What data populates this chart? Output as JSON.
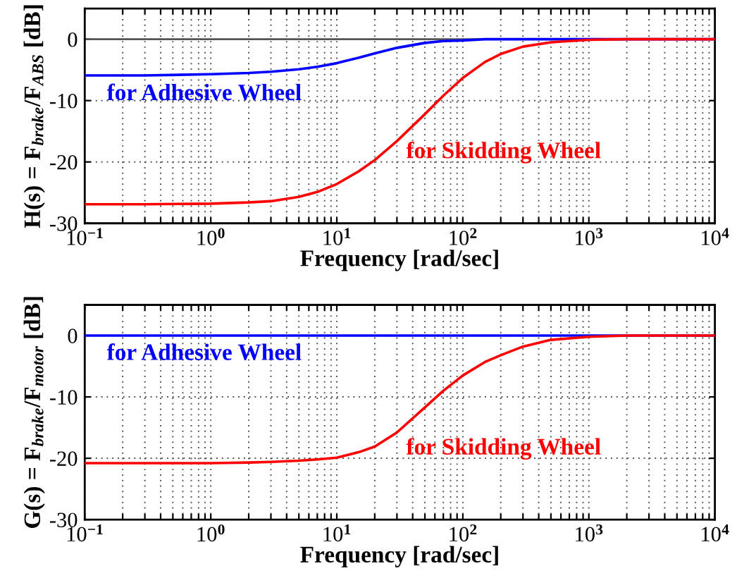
{
  "chart_data": [
    {
      "type": "line",
      "xlabel": "Frequency [rad/sec]",
      "ylabel": "H(s) = F$_{brake}$/F$_{ABS}$ [dB]",
      "log": "x",
      "grid": true,
      "legend": false,
      "marker": "none",
      "line_style": "solid",
      "xlim": [
        0.1,
        10000
      ],
      "xticks": [
        {
          "value": 0.1,
          "label": "10$^{−1}$"
        },
        {
          "value": 0.2,
          "label": null
        },
        {
          "value": 0.3,
          "label": null
        },
        {
          "value": 0.4,
          "label": null
        },
        {
          "value": 0.5,
          "label": null
        },
        {
          "value": 0.6,
          "label": null
        },
        {
          "value": 0.7,
          "label": null
        },
        {
          "value": 0.8,
          "label": null
        },
        {
          "value": 0.9,
          "label": null
        },
        {
          "value": 1,
          "label": "10$^{0}$"
        },
        {
          "value": 2,
          "label": null
        },
        {
          "value": 3,
          "label": null
        },
        {
          "value": 4,
          "label": null
        },
        {
          "value": 5,
          "label": null
        },
        {
          "value": 6,
          "label": null
        },
        {
          "value": 7,
          "label": null
        },
        {
          "value": 8,
          "label": null
        },
        {
          "value": 9,
          "label": null
        },
        {
          "value": 10,
          "label": "10$^{1}$"
        },
        {
          "value": 20,
          "label": null
        },
        {
          "value": 30,
          "label": null
        },
        {
          "value": 40,
          "label": null
        },
        {
          "value": 50,
          "label": null
        },
        {
          "value": 60,
          "label": null
        },
        {
          "value": 70,
          "label": null
        },
        {
          "value": 80,
          "label": null
        },
        {
          "value": 90,
          "label": null
        },
        {
          "value": 100,
          "label": "10$^{2}$"
        },
        {
          "value": 200,
          "label": null
        },
        {
          "value": 300,
          "label": null
        },
        {
          "value": 400,
          "label": null
        },
        {
          "value": 500,
          "label": null
        },
        {
          "value": 600,
          "label": null
        },
        {
          "value": 700,
          "label": null
        },
        {
          "value": 800,
          "label": null
        },
        {
          "value": 900,
          "label": null
        },
        {
          "value": 1000,
          "label": "10$^{3}$"
        },
        {
          "value": 2000,
          "label": null
        },
        {
          "value": 3000,
          "label": null
        },
        {
          "value": 4000,
          "label": null
        },
        {
          "value": 5000,
          "label": null
        },
        {
          "value": 6000,
          "label": null
        },
        {
          "value": 7000,
          "label": null
        },
        {
          "value": 8000,
          "label": null
        },
        {
          "value": 9000,
          "label": null
        },
        {
          "value": 10000,
          "label": "10$^{4}$"
        }
      ],
      "ylim": [
        -30,
        5
      ],
      "yticks": [
        -30,
        -20,
        -10,
        0
      ],
      "ref_lines": [
        {
          "axis": "y",
          "value": 0,
          "color": "#555555"
        }
      ],
      "x": [
        0.1,
        0.3,
        1,
        2,
        3,
        5,
        7,
        10,
        15,
        20,
        30,
        50,
        70,
        100,
        150,
        200,
        300,
        500,
        1000,
        2000,
        10000
      ],
      "series": [
        {
          "name": "for Adhesive Wheel",
          "color": "#0000ff",
          "values": [
            -5.9,
            -5.9,
            -5.7,
            -5.5,
            -5.3,
            -4.9,
            -4.5,
            -3.9,
            -3.0,
            -2.3,
            -1.4,
            -0.6,
            -0.3,
            -0.2,
            0,
            0,
            0,
            0,
            0,
            0,
            0
          ]
        },
        {
          "name": "for Skidding Wheel",
          "color": "#ff0000",
          "values": [
            -26.9,
            -26.9,
            -26.8,
            -26.6,
            -26.4,
            -25.7,
            -24.9,
            -23.6,
            -21.5,
            -19.7,
            -16.6,
            -12.2,
            -9.2,
            -6.3,
            -3.7,
            -2.4,
            -1.2,
            -0.5,
            -0.1,
            0,
            0
          ]
        }
      ]
    },
    {
      "type": "line",
      "xlabel": "Frequency [rad/sec]",
      "ylabel": "G(s) = F$_{brake}$/F$_{motor}$ [dB]",
      "log": "x",
      "grid": true,
      "legend": false,
      "marker": "none",
      "line_style": "solid",
      "xlim": [
        0.1,
        10000
      ],
      "xticks": [
        {
          "value": 0.1,
          "label": "10$^{−1}$"
        },
        {
          "value": 0.2,
          "label": null
        },
        {
          "value": 0.3,
          "label": null
        },
        {
          "value": 0.4,
          "label": null
        },
        {
          "value": 0.5,
          "label": null
        },
        {
          "value": 0.6,
          "label": null
        },
        {
          "value": 0.7,
          "label": null
        },
        {
          "value": 0.8,
          "label": null
        },
        {
          "value": 0.9,
          "label": null
        },
        {
          "value": 1,
          "label": "10$^{0}$"
        },
        {
          "value": 2,
          "label": null
        },
        {
          "value": 3,
          "label": null
        },
        {
          "value": 4,
          "label": null
        },
        {
          "value": 5,
          "label": null
        },
        {
          "value": 6,
          "label": null
        },
        {
          "value": 7,
          "label": null
        },
        {
          "value": 8,
          "label": null
        },
        {
          "value": 9,
          "label": null
        },
        {
          "value": 10,
          "label": "10$^{1}$"
        },
        {
          "value": 20,
          "label": null
        },
        {
          "value": 30,
          "label": null
        },
        {
          "value": 40,
          "label": null
        },
        {
          "value": 50,
          "label": null
        },
        {
          "value": 60,
          "label": null
        },
        {
          "value": 70,
          "label": null
        },
        {
          "value": 80,
          "label": null
        },
        {
          "value": 90,
          "label": null
        },
        {
          "value": 100,
          "label": "10$^{2}$"
        },
        {
          "value": 200,
          "label": null
        },
        {
          "value": 300,
          "label": null
        },
        {
          "value": 400,
          "label": null
        },
        {
          "value": 500,
          "label": null
        },
        {
          "value": 600,
          "label": null
        },
        {
          "value": 700,
          "label": null
        },
        {
          "value": 800,
          "label": null
        },
        {
          "value": 900,
          "label": null
        },
        {
          "value": 1000,
          "label": "10$^{3}$"
        },
        {
          "value": 2000,
          "label": null
        },
        {
          "value": 3000,
          "label": null
        },
        {
          "value": 4000,
          "label": null
        },
        {
          "value": 5000,
          "label": null
        },
        {
          "value": 6000,
          "label": null
        },
        {
          "value": 7000,
          "label": null
        },
        {
          "value": 8000,
          "label": null
        },
        {
          "value": 9000,
          "label": null
        },
        {
          "value": 10000,
          "label": "10$^{4}$"
        }
      ],
      "ylim": [
        -30,
        5
      ],
      "yticks": [
        -30,
        -20,
        -10,
        0
      ],
      "x": [
        0.1,
        0.3,
        1,
        2,
        3,
        5,
        7,
        10,
        15,
        20,
        30,
        50,
        70,
        100,
        150,
        200,
        300,
        500,
        1000,
        2000,
        10000
      ],
      "series": [
        {
          "name": "for Adhesive Wheel",
          "color": "#0000ff",
          "values": [
            0,
            0,
            0,
            0,
            0,
            0,
            0,
            0,
            0,
            0,
            0,
            0,
            0,
            0,
            0,
            0,
            0,
            0,
            0,
            0,
            0
          ]
        },
        {
          "name": "for Skidding Wheel",
          "color": "#ff0000",
          "values": [
            -20.8,
            -20.8,
            -20.8,
            -20.7,
            -20.6,
            -20.4,
            -20.2,
            -19.9,
            -19.0,
            -18.1,
            -15.8,
            -11.7,
            -9.0,
            -6.5,
            -4.3,
            -3.2,
            -1.8,
            -0.7,
            -0.2,
            0,
            0
          ]
        }
      ]
    }
  ]
}
